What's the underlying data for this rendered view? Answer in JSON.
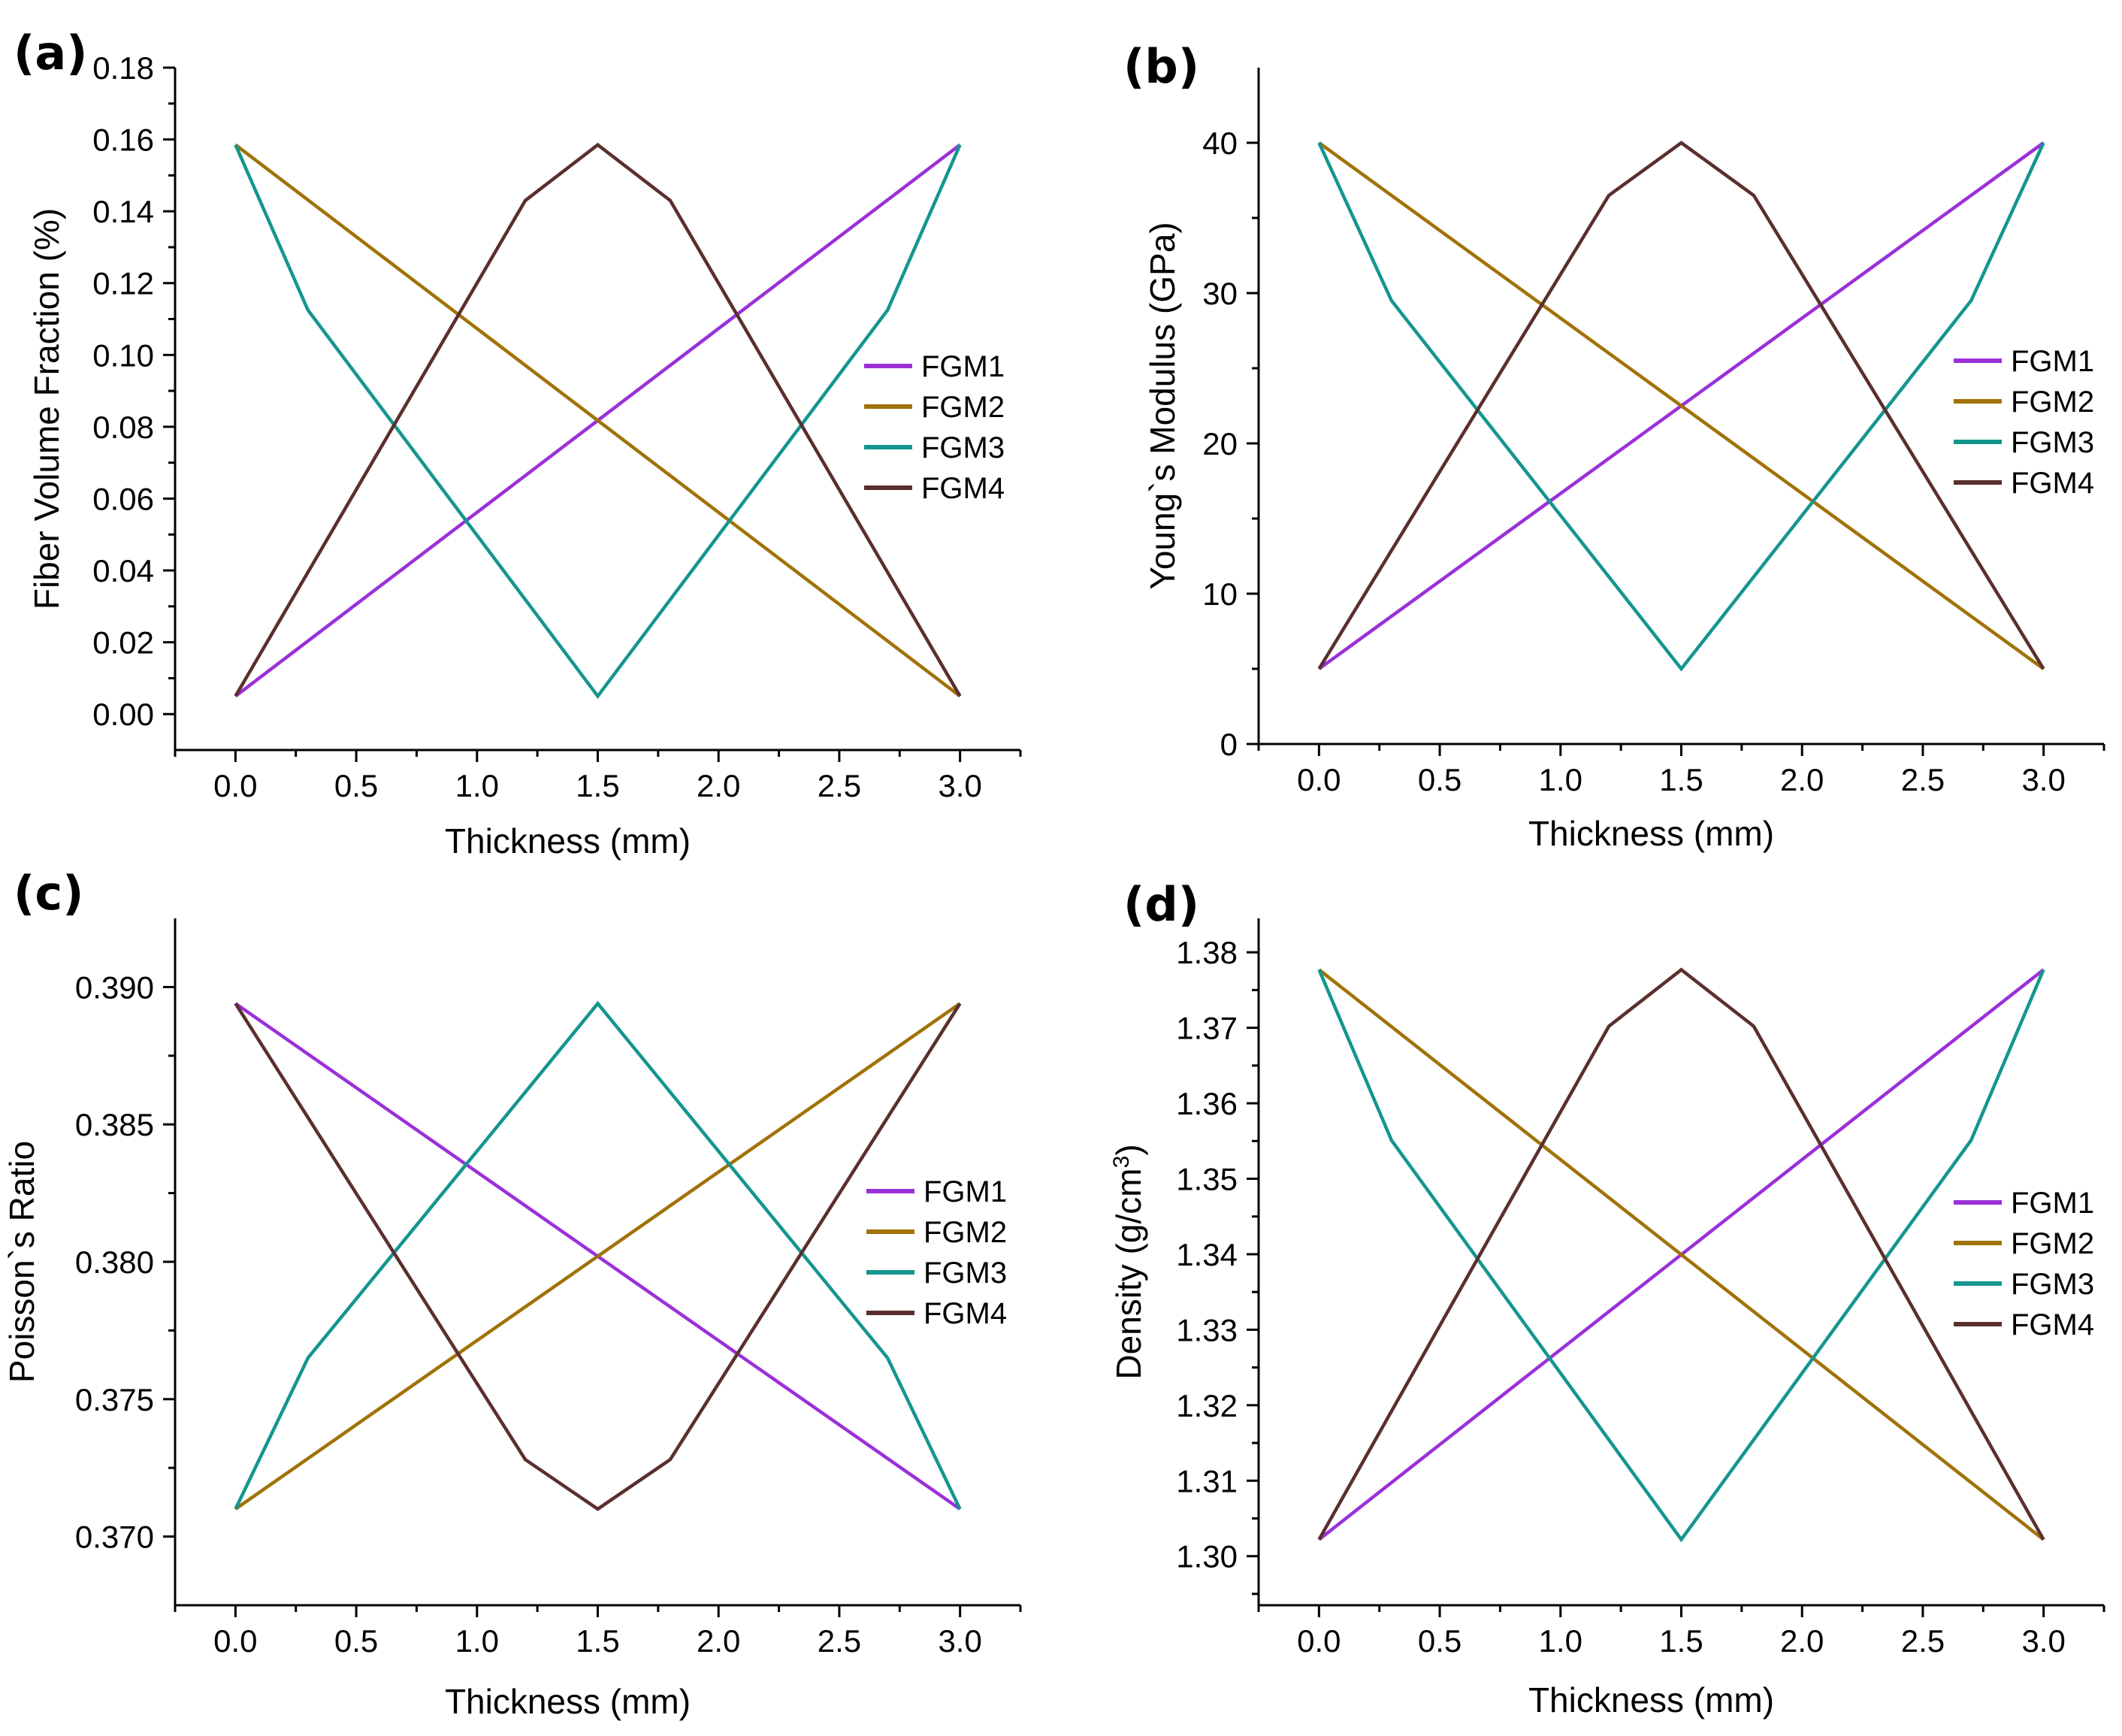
{
  "colors": {
    "FGM1": "#9b30d9",
    "FGM2": "#a07208",
    "FGM3": "#14968e",
    "FGM4": "#5a2f2e"
  },
  "chart_data": [
    {
      "panel_label": "(a)",
      "type": "line",
      "title": "",
      "xlabel": "Thickness (mm)",
      "ylabel": "Fiber Volume Fraction (%)",
      "xlim": [
        -0.25,
        3.25
      ],
      "ylim": [
        -0.01,
        0.18
      ],
      "xticks": [
        0.0,
        0.5,
        1.0,
        1.5,
        2.0,
        2.5,
        3.0
      ],
      "xtick_labels": [
        "0.0",
        "0.5",
        "1.0",
        "1.5",
        "2.0",
        "2.5",
        "3.0"
      ],
      "yticks": [
        0.0,
        0.02,
        0.04,
        0.06,
        0.08,
        0.1,
        0.12,
        0.14,
        0.16,
        0.18
      ],
      "ytick_labels": [
        "0.00",
        "0.02",
        "0.04",
        "0.06",
        "0.08",
        "0.10",
        "0.12",
        "0.14",
        "0.16",
        "0.18"
      ],
      "y_minor": true,
      "legend_position": "right",
      "series": [
        {
          "name": "FGM1",
          "x": [
            0,
            3
          ],
          "y": [
            0.005,
            0.1585
          ]
        },
        {
          "name": "FGM2",
          "x": [
            0,
            3
          ],
          "y": [
            0.1585,
            0.005
          ]
        },
        {
          "name": "FGM3",
          "x": [
            0,
            0.3,
            1.5,
            2.7,
            3.0
          ],
          "y": [
            0.1585,
            0.1125,
            0.005,
            0.1125,
            0.1585
          ]
        },
        {
          "name": "FGM4",
          "x": [
            0,
            1.2,
            1.5,
            1.8,
            3.0
          ],
          "y": [
            0.005,
            0.143,
            0.1585,
            0.143,
            0.005
          ]
        }
      ]
    },
    {
      "panel_label": "(b)",
      "type": "line",
      "title": "",
      "xlabel": "Thickness (mm)",
      "ylabel": "Young`s Modulus (GPa)",
      "xlim": [
        -0.25,
        3.25
      ],
      "ylim": [
        0,
        45
      ],
      "xticks": [
        0.0,
        0.5,
        1.0,
        1.5,
        2.0,
        2.5,
        3.0
      ],
      "xtick_labels": [
        "0.0",
        "0.5",
        "1.0",
        "1.5",
        "2.0",
        "2.5",
        "3.0"
      ],
      "yticks": [
        0,
        10,
        20,
        30,
        40
      ],
      "ytick_labels": [
        "0",
        "10",
        "20",
        "30",
        "40"
      ],
      "y_minor": false,
      "legend_position": "right",
      "series": [
        {
          "name": "FGM1",
          "x": [
            0,
            3
          ],
          "y": [
            5,
            40
          ]
        },
        {
          "name": "FGM2",
          "x": [
            0,
            3
          ],
          "y": [
            40,
            5
          ]
        },
        {
          "name": "FGM3",
          "x": [
            0,
            0.3,
            1.5,
            2.7,
            3.0
          ],
          "y": [
            40,
            29.5,
            5,
            29.5,
            40
          ]
        },
        {
          "name": "FGM4",
          "x": [
            0,
            1.2,
            1.5,
            1.8,
            3.0
          ],
          "y": [
            5,
            36.5,
            40,
            36.5,
            5
          ]
        }
      ]
    },
    {
      "panel_label": "(c)",
      "type": "line",
      "title": "",
      "xlabel": "Thickness (mm)",
      "ylabel": "Poisson`s Ratio",
      "xlim": [
        -0.25,
        3.25
      ],
      "ylim": [
        0.3675,
        0.3925
      ],
      "xticks": [
        0.0,
        0.5,
        1.0,
        1.5,
        2.0,
        2.5,
        3.0
      ],
      "xtick_labels": [
        "0.0",
        "0.5",
        "1.0",
        "1.5",
        "2.0",
        "2.5",
        "3.0"
      ],
      "yticks": [
        0.37,
        0.375,
        0.38,
        0.385,
        0.39
      ],
      "ytick_labels": [
        "0.370",
        "0.375",
        "0.380",
        "0.385",
        "0.390"
      ],
      "y_minor": false,
      "legend_position": "right",
      "series": [
        {
          "name": "FGM1",
          "x": [
            0,
            3
          ],
          "y": [
            0.3894,
            0.371
          ]
        },
        {
          "name": "FGM2",
          "x": [
            0,
            3
          ],
          "y": [
            0.371,
            0.3894
          ]
        },
        {
          "name": "FGM3",
          "x": [
            0,
            0.3,
            1.5,
            2.7,
            3.0
          ],
          "y": [
            0.371,
            0.3765,
            0.3894,
            0.3765,
            0.371
          ]
        },
        {
          "name": "FGM4",
          "x": [
            0,
            1.2,
            1.5,
            1.8,
            3.0
          ],
          "y": [
            0.3894,
            0.3728,
            0.371,
            0.3728,
            0.3894
          ]
        }
      ]
    },
    {
      "panel_label": "(d)",
      "type": "line",
      "title": "",
      "xlabel": "Thickness (mm)",
      "ylabel": "Density (g/cm",
      "ylabel_superscript": "3",
      "ylabel_suffix": ")",
      "xlim": [
        -0.25,
        3.25
      ],
      "ylim": [
        1.2935,
        1.3845
      ],
      "xticks": [
        0.0,
        0.5,
        1.0,
        1.5,
        2.0,
        2.5,
        3.0
      ],
      "xtick_labels": [
        "0.0",
        "0.5",
        "1.0",
        "1.5",
        "2.0",
        "2.5",
        "3.0"
      ],
      "yticks": [
        1.3,
        1.31,
        1.32,
        1.33,
        1.34,
        1.35,
        1.36,
        1.37,
        1.38
      ],
      "ytick_labels": [
        "1.30",
        "1.31",
        "1.32",
        "1.33",
        "1.34",
        "1.35",
        "1.36",
        "1.37",
        "1.38"
      ],
      "y_minor": false,
      "legend_position": "right",
      "series": [
        {
          "name": "FGM1",
          "x": [
            0,
            3
          ],
          "y": [
            1.3022,
            1.3777
          ]
        },
        {
          "name": "FGM2",
          "x": [
            0,
            3
          ],
          "y": [
            1.3777,
            1.3022
          ]
        },
        {
          "name": "FGM3",
          "x": [
            0,
            0.3,
            1.5,
            2.7,
            3.0
          ],
          "y": [
            1.3777,
            1.3551,
            1.3022,
            1.3551,
            1.3777
          ]
        },
        {
          "name": "FGM4",
          "x": [
            0,
            1.2,
            1.5,
            1.8,
            3.0
          ],
          "y": [
            1.3022,
            1.3702,
            1.3777,
            1.3702,
            1.3022
          ]
        }
      ]
    }
  ]
}
